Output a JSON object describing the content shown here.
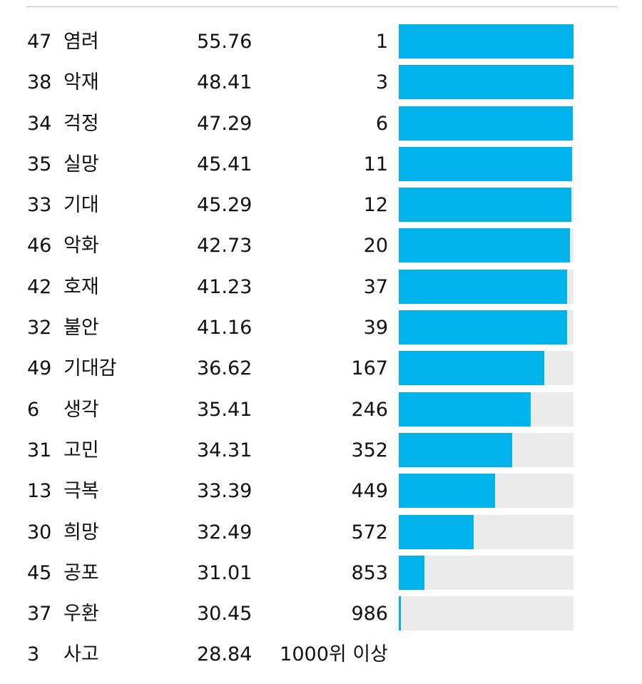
{
  "colors": {
    "bar_fill": "#00b3eb",
    "bar_track": "#ebebeb"
  },
  "chart_data": {
    "type": "table",
    "columns": [
      "id",
      "word",
      "score",
      "rank",
      "bar"
    ],
    "bar_scale": "rank (1 = full bar, near 1000 = empty)",
    "rows": [
      {
        "id": "47",
        "word": "염려",
        "score": "55.76",
        "rank": "1",
        "bar": 1.0
      },
      {
        "id": "38",
        "word": "악재",
        "score": "48.41",
        "rank": "3",
        "bar": 0.998
      },
      {
        "id": "34",
        "word": "걱정",
        "score": "47.29",
        "rank": "6",
        "bar": 0.995
      },
      {
        "id": "35",
        "word": "실망",
        "score": "45.41",
        "rank": "11",
        "bar": 0.99
      },
      {
        "id": "33",
        "word": "기대",
        "score": "45.29",
        "rank": "12",
        "bar": 0.989
      },
      {
        "id": "46",
        "word": "악화",
        "score": "42.73",
        "rank": "20",
        "bar": 0.981
      },
      {
        "id": "42",
        "word": "호재",
        "score": "41.23",
        "rank": "37",
        "bar": 0.964
      },
      {
        "id": "32",
        "word": "불안",
        "score": "41.16",
        "rank": "39",
        "bar": 0.962
      },
      {
        "id": "49",
        "word": "기대감",
        "score": "36.62",
        "rank": "167",
        "bar": 0.834
      },
      {
        "id": "6",
        "word": "생각",
        "score": "35.41",
        "rank": "246",
        "bar": 0.755
      },
      {
        "id": "31",
        "word": "고민",
        "score": "34.31",
        "rank": "352",
        "bar": 0.649
      },
      {
        "id": "13",
        "word": "극복",
        "score": "33.39",
        "rank": "449",
        "bar": 0.552
      },
      {
        "id": "30",
        "word": "희망",
        "score": "32.49",
        "rank": "572",
        "bar": 0.428
      },
      {
        "id": "45",
        "word": "공포",
        "score": "31.01",
        "rank": "853",
        "bar": 0.147
      },
      {
        "id": "37",
        "word": "우환",
        "score": "30.45",
        "rank": "986",
        "bar": 0.014
      },
      {
        "id": "3",
        "word": "사고",
        "score": "28.84",
        "rank": "1000위 이상",
        "bar": null
      }
    ]
  }
}
